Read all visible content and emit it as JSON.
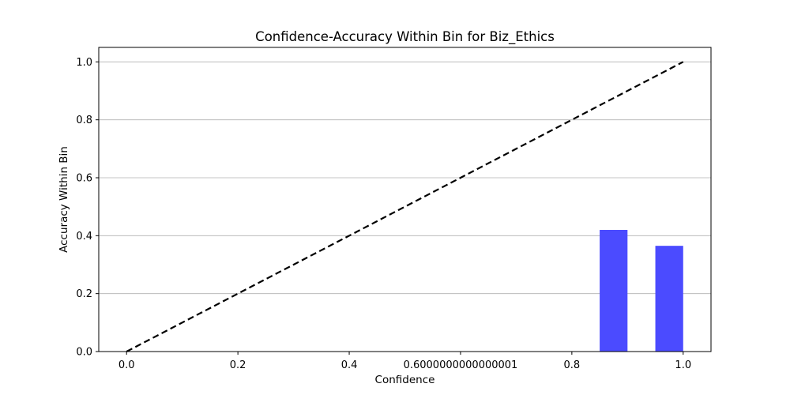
{
  "chart_data": {
    "type": "bar",
    "title": "Confidence-Accuracy Within Bin for Biz_Ethics",
    "xlabel": "Confidence",
    "ylabel": "Accuracy Within Bin",
    "xlim": [
      -0.05,
      1.05
    ],
    "ylim": [
      0.0,
      1.05
    ],
    "x_ticks": [
      {
        "value": 0.0,
        "label": "0.0"
      },
      {
        "value": 0.2,
        "label": "0.2"
      },
      {
        "value": 0.4,
        "label": "0.4"
      },
      {
        "value": 0.6,
        "label": "0.6000000000000001"
      },
      {
        "value": 0.8,
        "label": "0.8"
      },
      {
        "value": 1.0,
        "label": "1.0"
      }
    ],
    "y_ticks": [
      {
        "value": 0.0,
        "label": "0.0"
      },
      {
        "value": 0.2,
        "label": "0.2"
      },
      {
        "value": 0.4,
        "label": "0.4"
      },
      {
        "value": 0.6,
        "label": "0.6"
      },
      {
        "value": 0.8,
        "label": "0.8"
      },
      {
        "value": 1.0,
        "label": "1.0"
      }
    ],
    "grid": {
      "y": true,
      "x": false
    },
    "bars": {
      "color": "#4b4bff",
      "width": 0.05,
      "items": [
        {
          "x": 0.875,
          "value": 0.42
        },
        {
          "x": 0.975,
          "value": 0.365
        }
      ]
    },
    "reference_line": {
      "style": "dashed",
      "color": "#000000",
      "points": [
        [
          0.0,
          0.0
        ],
        [
          1.0,
          1.0
        ]
      ]
    }
  }
}
